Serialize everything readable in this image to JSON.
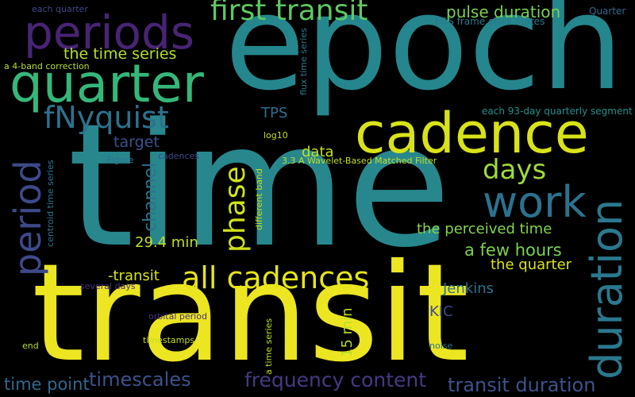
{
  "words": [
    {
      "id": "epoch",
      "text": "epoch",
      "color": "#25868d"
    },
    {
      "id": "time",
      "text": "time",
      "color": "#27878d"
    },
    {
      "id": "transit",
      "text": "transit",
      "color": "#ece521"
    },
    {
      "id": "periods",
      "text": "periods",
      "color": "#482475"
    },
    {
      "id": "quarter",
      "text": "quarter",
      "color": "#35b779"
    },
    {
      "id": "cadence",
      "text": "cadence",
      "color": "#d8e219"
    },
    {
      "id": "first_transit",
      "text": "first transit",
      "color": "#5ec962"
    },
    {
      "id": "pulse_duration",
      "text": "pulse duration",
      "color": "#7ad151"
    },
    {
      "id": "period",
      "text": "period",
      "color": "#3e4989"
    },
    {
      "id": "fnyquist",
      "text": "fNyquist",
      "color": "#2c728e"
    },
    {
      "id": "work",
      "text": "work",
      "color": "#2c728e"
    },
    {
      "id": "days",
      "text": "days",
      "color": "#a0da39"
    },
    {
      "id": "duration",
      "text": "duration",
      "color": "#2a788e"
    },
    {
      "id": "all_cadences",
      "text": "all cadences",
      "color": "#e5e419"
    },
    {
      "id": "phase",
      "text": "phase",
      "color": "#d0e11c"
    },
    {
      "id": "channel",
      "text": "channel",
      "color": "#2c728e"
    },
    {
      "id": "the_time_series",
      "text": "the time series",
      "color": "#b5de2b"
    },
    {
      "id": "timescales",
      "text": "timescales",
      "color": "#3b528b"
    },
    {
      "id": "frequency_content",
      "text": "frequency content",
      "color": "#443a83"
    },
    {
      "id": "transit_duration",
      "text": "transit duration",
      "color": "#3b528b"
    },
    {
      "id": "time_point",
      "text": "time point",
      "color": "#31688e"
    },
    {
      "id": "a_few_hours",
      "text": "a few hours",
      "color": "#7ad151"
    },
    {
      "id": "the_perceived_time",
      "text": "the perceived time",
      "color": "#84d44b"
    },
    {
      "id": "the_quarter",
      "text": "the quarter",
      "color": "#d8e219"
    },
    {
      "id": "target",
      "text": "target",
      "color": "#3b528b"
    },
    {
      "id": "tps",
      "text": "TPS",
      "color": "#2e6e8e"
    },
    {
      "id": "data",
      "text": "data",
      "color": "#c8e020"
    },
    {
      "id": "minus_transit",
      "text": "-transit",
      "color": "#d8e219"
    },
    {
      "id": "min_29_4",
      "text": "29.4 min",
      "color": "#bddf26"
    },
    {
      "id": "jenkins",
      "text": "Jenkins",
      "color": "#2c728e"
    },
    {
      "id": "kic",
      "text": "KIC",
      "color": "#3e4989"
    },
    {
      "id": "min_15",
      "text": "15 min",
      "color": "#b8de29"
    },
    {
      "id": "each_quarter",
      "text": "each quarter",
      "color": "#3e4989"
    },
    {
      "id": "quarter_small",
      "text": "Quarter",
      "color": "#31688e"
    },
    {
      "id": "fgs_frame_clock_states",
      "text": "FGS frame clock states",
      "color": "#2a788e"
    },
    {
      "id": "a_4_band_correction",
      "text": "a 4-band correction",
      "color": "#b5de2b"
    },
    {
      "id": "flux_time_series",
      "text": "flux time series",
      "color": "#2a788e"
    },
    {
      "id": "each_93_day_quarterly_segment",
      "text": "each 93-day quarterly segment",
      "color": "#21918c"
    },
    {
      "id": "log10",
      "text": "log10",
      "color": "#c2df23"
    },
    {
      "id": "figure",
      "text": "Figure",
      "color": "#2c728e"
    },
    {
      "id": "cadences",
      "text": "cadences",
      "color": "#3e4989"
    },
    {
      "id": "wavelet_matched_filter",
      "text": "3.3 A Wavelet-Based Matched Filter",
      "color": "#c2df23"
    },
    {
      "id": "centroid_time_series",
      "text": "centroid time series",
      "color": "#2a788e"
    },
    {
      "id": "different_band",
      "text": "different band",
      "color": "#bddf26"
    },
    {
      "id": "several_days",
      "text": "several days",
      "color": "#46337e"
    },
    {
      "id": "orbital_period",
      "text": "orbital period",
      "color": "#46337e"
    },
    {
      "id": "end",
      "text": "end",
      "color": "#b5de2b"
    },
    {
      "id": "timestamps",
      "text": "timestamps",
      "color": "#c2df23"
    },
    {
      "id": "a_time_series",
      "text": "a time series",
      "color": "#b8de29"
    },
    {
      "id": "noise",
      "text": "noise",
      "color": "#2a788e"
    }
  ]
}
